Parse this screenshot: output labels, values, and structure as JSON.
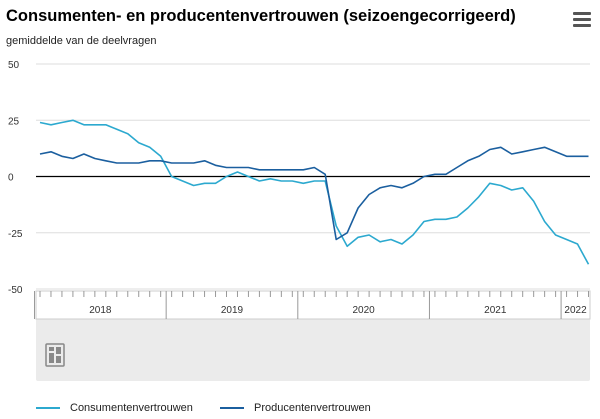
{
  "header": {
    "title": "Consumenten- en producentenvertrouwen (seizoengecorrigeerd)",
    "subtitle": "gemiddelde van de deelvragen",
    "menu_icon": "hamburger-menu-icon"
  },
  "colors": {
    "consumer": "#2ca9cf",
    "producer": "#1b5f9f",
    "zero_line": "#000000",
    "grid": "#dddddd",
    "navigator_bg": "#ebebeb"
  },
  "chart_data": {
    "type": "line",
    "title": "Consumenten- en producentenvertrouwen (seizoengecorrigeerd)",
    "subtitle": "gemiddelde van de deelvragen",
    "ylim": [
      -50,
      50
    ],
    "y_ticks": [
      "50",
      "25",
      "0",
      "-25",
      "-50"
    ],
    "y_tick_values": [
      50,
      25,
      0,
      -25,
      -50
    ],
    "xlim": [
      "2018-01",
      "2022-03"
    ],
    "x_year_labels": [
      "2018",
      "2019",
      "2020",
      "2021",
      "2022"
    ],
    "grid": true,
    "legend_position": "bottom",
    "x": [
      "2018-01",
      "2018-02",
      "2018-03",
      "2018-04",
      "2018-05",
      "2018-06",
      "2018-07",
      "2018-08",
      "2018-09",
      "2018-10",
      "2018-11",
      "2018-12",
      "2019-01",
      "2019-02",
      "2019-03",
      "2019-04",
      "2019-05",
      "2019-06",
      "2019-07",
      "2019-08",
      "2019-09",
      "2019-10",
      "2019-11",
      "2019-12",
      "2020-01",
      "2020-02",
      "2020-03",
      "2020-04",
      "2020-05",
      "2020-06",
      "2020-07",
      "2020-08",
      "2020-09",
      "2020-10",
      "2020-11",
      "2020-12",
      "2021-01",
      "2021-02",
      "2021-03",
      "2021-04",
      "2021-05",
      "2021-06",
      "2021-07",
      "2021-08",
      "2021-09",
      "2021-10",
      "2021-11",
      "2021-12",
      "2022-01",
      "2022-02",
      "2022-03"
    ],
    "series": [
      {
        "name": "Consumentenvertrouwen",
        "values": [
          24,
          23,
          24,
          25,
          23,
          23,
          23,
          21,
          19,
          15,
          13,
          9,
          0,
          -2,
          -4,
          -3,
          -3,
          0,
          2,
          0,
          -2,
          -1,
          -2,
          -2,
          -3,
          -2,
          -2,
          -22,
          -31,
          -27,
          -26,
          -29,
          -28,
          -30,
          -26,
          -20,
          -19,
          -19,
          -18,
          -14,
          -9,
          -3,
          -4,
          -6,
          -5,
          -11,
          -20,
          -26,
          -28,
          -30,
          -39
        ]
      },
      {
        "name": "Producentenvertrouwen",
        "values": [
          10,
          11,
          9,
          8,
          10,
          8,
          7,
          6,
          6,
          6,
          7,
          7,
          6,
          6,
          6,
          7,
          5,
          4,
          4,
          4,
          3,
          3,
          3,
          3,
          3,
          4,
          1,
          -28,
          -25,
          -14,
          -8,
          -5,
          -4,
          -5,
          -3,
          0,
          1,
          1,
          4,
          7,
          9,
          12,
          13,
          10,
          11,
          12,
          13,
          11,
          9,
          9,
          9
        ]
      }
    ]
  }
}
